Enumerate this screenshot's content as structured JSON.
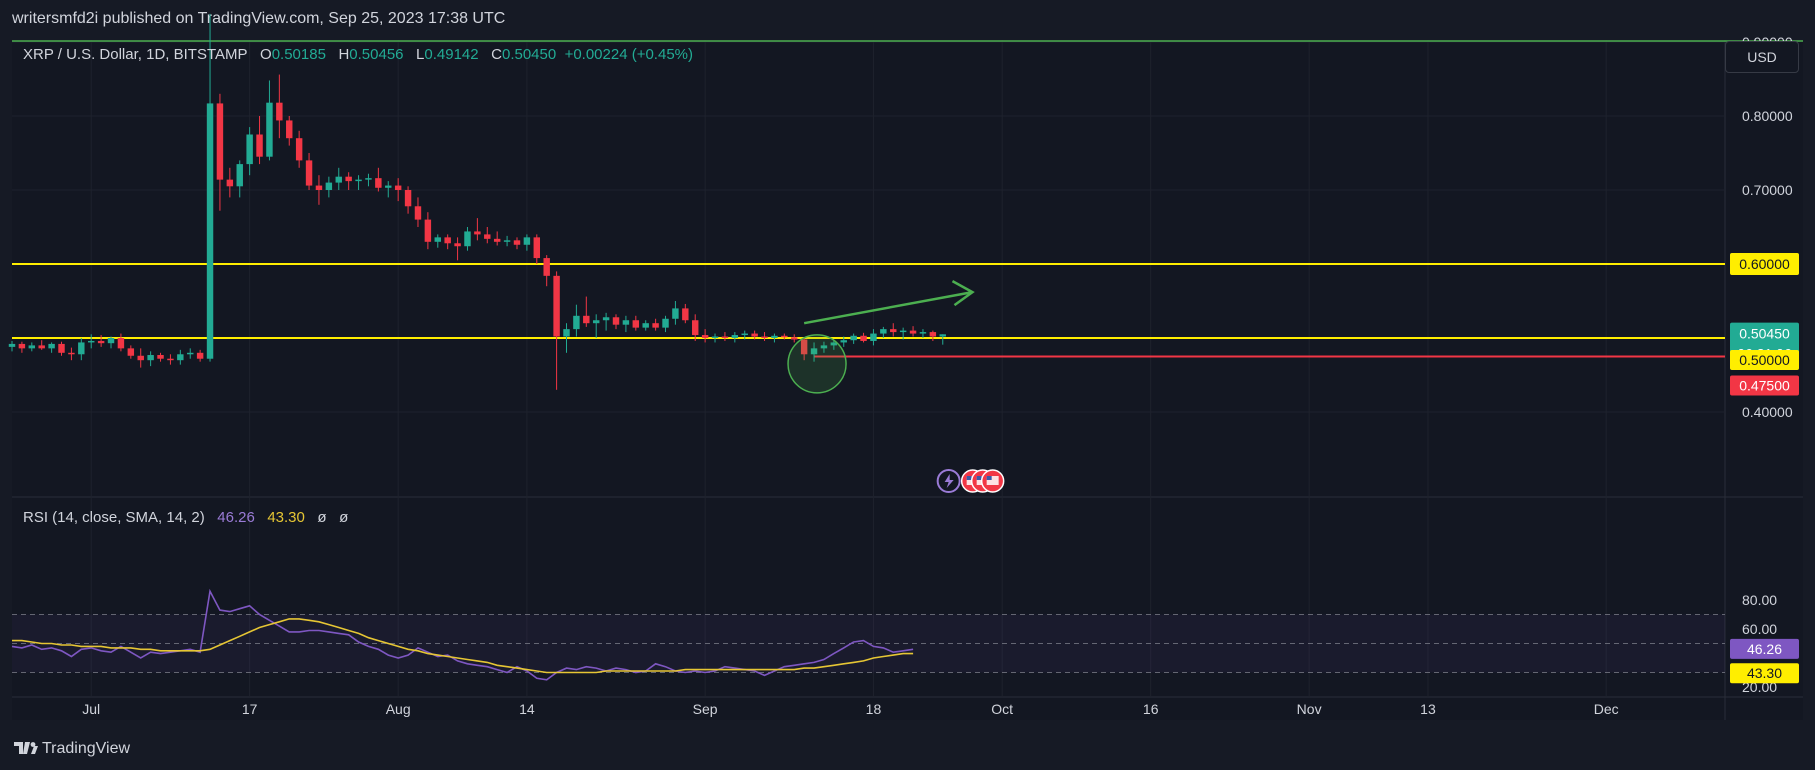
{
  "header": {
    "publisher_text": "writersmfd2i published on TradingView.com, Sep 25, 2023 17:38 UTC"
  },
  "legend": {
    "symbol": "XRP / U.S. Dollar, 1D, BITSTAMP",
    "o_label": "O",
    "o_value": "0.50185",
    "h_label": "H",
    "h_value": "0.50456",
    "l_label": "L",
    "l_value": "0.49142",
    "c_label": "C",
    "c_value": "0.50450",
    "change": "+0.00224 (+0.45%)"
  },
  "rsi_legend": {
    "label": "RSI (14, close, SMA, 14, 2)",
    "rsi_value": "46.26",
    "sma_value": "43.30",
    "na1": "ø",
    "na2": "ø"
  },
  "currency_button": "USD",
  "footer": {
    "brand": "TradingView"
  },
  "colors": {
    "background": "#131722",
    "up": "#22ab94",
    "down": "#f23645",
    "resistance": "#ffee00",
    "support": "#f23645",
    "rsi": "#7e57c2",
    "rsi_ma": "#e6c634",
    "arrow": "#4caf50"
  },
  "chart_data": [
    {
      "type": "candlestick",
      "title": "XRP / U.S. Dollar, 1D, BITSTAMP",
      "y_axis_ticks": [
        "0.90000",
        "0.80000",
        "0.70000",
        "0.60000",
        "0.50000",
        "0.40000"
      ],
      "x_axis_ticks": [
        "Jul",
        "17",
        "Aug",
        "14",
        "Sep",
        "18",
        "Oct",
        "16",
        "Nov",
        "13",
        "Dec"
      ],
      "ylim": [
        0.39,
        1.0
      ],
      "date_range": [
        "2023-06-23",
        "2023-12-13"
      ],
      "candles_ohlc": [
        [
          "2023-06-23",
          0.488,
          0.496,
          0.482,
          0.492
        ],
        [
          "2023-06-24",
          0.492,
          0.495,
          0.48,
          0.486
        ],
        [
          "2023-06-25",
          0.486,
          0.494,
          0.482,
          0.49
        ],
        [
          "2023-06-26",
          0.49,
          0.497,
          0.484,
          0.486
        ],
        [
          "2023-06-27",
          0.486,
          0.494,
          0.48,
          0.492
        ],
        [
          "2023-06-28",
          0.492,
          0.495,
          0.476,
          0.48
        ],
        [
          "2023-06-29",
          0.48,
          0.487,
          0.47,
          0.478
        ],
        [
          "2023-06-30",
          0.478,
          0.5,
          0.47,
          0.494
        ],
        [
          "2023-07-01",
          0.494,
          0.505,
          0.486,
          0.496
        ],
        [
          "2023-07-02",
          0.496,
          0.504,
          0.488,
          0.493
        ],
        [
          "2023-07-03",
          0.493,
          0.502,
          0.486,
          0.5
        ],
        [
          "2023-07-04",
          0.5,
          0.506,
          0.482,
          0.486
        ],
        [
          "2023-07-05",
          0.486,
          0.49,
          0.472,
          0.476
        ],
        [
          "2023-07-06",
          0.476,
          0.486,
          0.46,
          0.47
        ],
        [
          "2023-07-07",
          0.47,
          0.482,
          0.462,
          0.477
        ],
        [
          "2023-07-08",
          0.477,
          0.48,
          0.468,
          0.472
        ],
        [
          "2023-07-09",
          0.472,
          0.478,
          0.464,
          0.47
        ],
        [
          "2023-07-10",
          0.47,
          0.484,
          0.464,
          0.478
        ],
        [
          "2023-07-11",
          0.478,
          0.486,
          0.472,
          0.48
        ],
        [
          "2023-07-12",
          0.48,
          0.484,
          0.468,
          0.472
        ],
        [
          "2023-07-13",
          0.472,
          0.938,
          0.468,
          0.817
        ],
        [
          "2023-07-14",
          0.817,
          0.83,
          0.672,
          0.714
        ],
        [
          "2023-07-15",
          0.714,
          0.73,
          0.69,
          0.705
        ],
        [
          "2023-07-16",
          0.705,
          0.74,
          0.69,
          0.735
        ],
        [
          "2023-07-17",
          0.735,
          0.785,
          0.72,
          0.775
        ],
        [
          "2023-07-18",
          0.775,
          0.8,
          0.735,
          0.745
        ],
        [
          "2023-07-19",
          0.745,
          0.848,
          0.74,
          0.818
        ],
        [
          "2023-07-20",
          0.818,
          0.856,
          0.77,
          0.794
        ],
        [
          "2023-07-21",
          0.794,
          0.8,
          0.76,
          0.77
        ],
        [
          "2023-07-22",
          0.77,
          0.78,
          0.73,
          0.74
        ],
        [
          "2023-07-23",
          0.74,
          0.75,
          0.7,
          0.706
        ],
        [
          "2023-07-24",
          0.706,
          0.72,
          0.68,
          0.7
        ],
        [
          "2023-07-25",
          0.7,
          0.718,
          0.69,
          0.71
        ],
        [
          "2023-07-26",
          0.71,
          0.73,
          0.7,
          0.718
        ],
        [
          "2023-07-27",
          0.718,
          0.724,
          0.7,
          0.712
        ],
        [
          "2023-07-28",
          0.712,
          0.72,
          0.7,
          0.714
        ],
        [
          "2023-07-29",
          0.714,
          0.722,
          0.705,
          0.716
        ],
        [
          "2023-07-30",
          0.716,
          0.73,
          0.698,
          0.703
        ],
        [
          "2023-07-31",
          0.703,
          0.712,
          0.69,
          0.706
        ],
        [
          "2023-08-01",
          0.706,
          0.716,
          0.685,
          0.7
        ],
        [
          "2023-08-02",
          0.7,
          0.705,
          0.668,
          0.678
        ],
        [
          "2023-08-03",
          0.678,
          0.69,
          0.65,
          0.66
        ],
        [
          "2023-08-04",
          0.66,
          0.67,
          0.62,
          0.63
        ],
        [
          "2023-08-05",
          0.63,
          0.64,
          0.622,
          0.636
        ],
        [
          "2023-08-06",
          0.636,
          0.64,
          0.62,
          0.628
        ],
        [
          "2023-08-07",
          0.628,
          0.636,
          0.605,
          0.624
        ],
        [
          "2023-08-08",
          0.624,
          0.65,
          0.618,
          0.644
        ],
        [
          "2023-08-09",
          0.644,
          0.662,
          0.632,
          0.64
        ],
        [
          "2023-08-10",
          0.64,
          0.65,
          0.628,
          0.634
        ],
        [
          "2023-08-11",
          0.634,
          0.644,
          0.625,
          0.63
        ],
        [
          "2023-08-12",
          0.63,
          0.638,
          0.624,
          0.632
        ],
        [
          "2023-08-13",
          0.632,
          0.636,
          0.62,
          0.626
        ],
        [
          "2023-08-14",
          0.626,
          0.64,
          0.618,
          0.636
        ],
        [
          "2023-08-15",
          0.636,
          0.64,
          0.6,
          0.608
        ],
        [
          "2023-08-16",
          0.608,
          0.612,
          0.57,
          0.584
        ],
        [
          "2023-08-17",
          0.584,
          0.59,
          0.43,
          0.502
        ],
        [
          "2023-08-18",
          0.502,
          0.52,
          0.48,
          0.512
        ],
        [
          "2023-08-19",
          0.512,
          0.545,
          0.502,
          0.53
        ],
        [
          "2023-08-20",
          0.53,
          0.556,
          0.515,
          0.52
        ],
        [
          "2023-08-21",
          0.52,
          0.532,
          0.5,
          0.524
        ],
        [
          "2023-08-22",
          0.524,
          0.534,
          0.51,
          0.528
        ],
        [
          "2023-08-23",
          0.528,
          0.532,
          0.512,
          0.518
        ],
        [
          "2023-08-24",
          0.518,
          0.53,
          0.508,
          0.524
        ],
        [
          "2023-08-25",
          0.524,
          0.53,
          0.51,
          0.514
        ],
        [
          "2023-08-26",
          0.514,
          0.524,
          0.51,
          0.52
        ],
        [
          "2023-08-27",
          0.52,
          0.526,
          0.51,
          0.514
        ],
        [
          "2023-08-28",
          0.514,
          0.53,
          0.508,
          0.526
        ],
        [
          "2023-08-29",
          0.526,
          0.55,
          0.518,
          0.54
        ],
        [
          "2023-08-30",
          0.54,
          0.546,
          0.52,
          0.524
        ],
        [
          "2023-08-31",
          0.524,
          0.532,
          0.496,
          0.504
        ],
        [
          "2023-09-01",
          0.504,
          0.512,
          0.494,
          0.5
        ],
        [
          "2023-09-02",
          0.5,
          0.506,
          0.494,
          0.502
        ],
        [
          "2023-09-03",
          0.502,
          0.508,
          0.496,
          0.5
        ],
        [
          "2023-09-04",
          0.5,
          0.508,
          0.494,
          0.504
        ],
        [
          "2023-09-05",
          0.504,
          0.51,
          0.498,
          0.506
        ],
        [
          "2023-09-06",
          0.506,
          0.51,
          0.498,
          0.502
        ],
        [
          "2023-09-07",
          0.502,
          0.508,
          0.496,
          0.5
        ],
        [
          "2023-09-08",
          0.5,
          0.506,
          0.494,
          0.503
        ],
        [
          "2023-09-09",
          0.503,
          0.506,
          0.498,
          0.501
        ],
        [
          "2023-09-10",
          0.501,
          0.505,
          0.494,
          0.498
        ],
        [
          "2023-09-11",
          0.498,
          0.5,
          0.47,
          0.478
        ],
        [
          "2023-09-12",
          0.478,
          0.494,
          0.468,
          0.486
        ],
        [
          "2023-09-13",
          0.486,
          0.495,
          0.48,
          0.49
        ],
        [
          "2023-09-14",
          0.49,
          0.498,
          0.484,
          0.494
        ],
        [
          "2023-09-15",
          0.494,
          0.502,
          0.488,
          0.497
        ],
        [
          "2023-09-16",
          0.497,
          0.506,
          0.492,
          0.503
        ],
        [
          "2023-09-17",
          0.503,
          0.507,
          0.494,
          0.496
        ],
        [
          "2023-09-18",
          0.496,
          0.512,
          0.49,
          0.506
        ],
        [
          "2023-09-19",
          0.506,
          0.515,
          0.5,
          0.512
        ],
        [
          "2023-09-20",
          0.512,
          0.52,
          0.502,
          0.508
        ],
        [
          "2023-09-21",
          0.508,
          0.514,
          0.498,
          0.51
        ],
        [
          "2023-09-22",
          0.51,
          0.516,
          0.502,
          0.506
        ],
        [
          "2023-09-23",
          0.506,
          0.512,
          0.5,
          0.508
        ],
        [
          "2023-09-24",
          0.508,
          0.51,
          0.496,
          0.502
        ],
        [
          "2023-09-25",
          0.502,
          0.505,
          0.491,
          0.505
        ]
      ],
      "horizontal_levels": [
        {
          "label": "0.60000",
          "value": 0.6,
          "color": "#ffee00"
        },
        {
          "label": "0.50000",
          "value": 0.5,
          "color": "#ffee00"
        },
        {
          "label": "0.47500",
          "value": 0.475,
          "color": "#f23645"
        }
      ],
      "last_price": {
        "label": "0.50450",
        "countdown": "06:21:06",
        "value": 0.5045
      }
    },
    {
      "type": "line",
      "title": "RSI (14, close, SMA, 14, 2)",
      "y_axis_ticks": [
        "80.00",
        "60.00",
        "20.00"
      ],
      "ylim": [
        15,
        90
      ],
      "band": [
        30,
        70
      ],
      "last_values": {
        "rsi": "46.26",
        "sma": "43.30"
      },
      "series": [
        {
          "name": "RSI",
          "color": "#7e57c2",
          "values": [
            48,
            47,
            49,
            46,
            47,
            45,
            41,
            46,
            47,
            45,
            44,
            48,
            44,
            40,
            44,
            43,
            44,
            45,
            46,
            44,
            86,
            73,
            72,
            74,
            76,
            70,
            66,
            62,
            58,
            58,
            59,
            59,
            58,
            57,
            56,
            51,
            48,
            46,
            42,
            40,
            42,
            47,
            44,
            41,
            42,
            38,
            36,
            35,
            34,
            32,
            30,
            34,
            31,
            26,
            25,
            30,
            33,
            32,
            34,
            33,
            31,
            33,
            32,
            30,
            31,
            36,
            34,
            31,
            30,
            31,
            30,
            31,
            34,
            33,
            32,
            31,
            28,
            31,
            34,
            35,
            36,
            37,
            39,
            43,
            47,
            51,
            52,
            48,
            47,
            44,
            45,
            46
          ]
        },
        {
          "name": "SMA",
          "color": "#e6c634",
          "values": [
            52,
            52,
            51,
            50,
            50,
            49,
            49,
            48,
            48,
            48,
            47,
            47,
            47,
            46,
            46,
            45,
            45,
            45,
            45,
            45,
            46,
            49,
            52,
            55,
            58,
            61,
            63,
            65,
            67,
            67,
            66,
            65,
            63,
            61,
            59,
            57,
            54,
            52,
            50,
            48,
            46,
            45,
            43,
            42,
            41,
            40,
            39,
            38,
            37,
            35,
            34,
            33,
            32,
            31,
            30,
            30,
            30,
            30,
            30,
            30,
            31,
            31,
            31,
            31,
            31,
            31,
            31,
            31,
            32,
            32,
            32,
            32,
            32,
            32,
            32,
            32,
            32,
            32,
            32,
            32,
            33,
            33,
            34,
            35,
            36,
            37,
            38,
            40,
            41,
            42,
            43,
            43
          ]
        }
      ]
    }
  ]
}
